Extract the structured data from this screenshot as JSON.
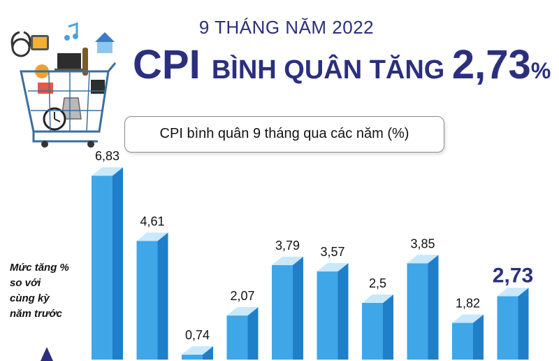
{
  "header": {
    "subtitle": "9 THÁNG NĂM 2022",
    "headline_part1": "CPI ",
    "headline_part2": "BÌNH QUÂN TĂNG ",
    "headline_part3": "2,73",
    "headline_part4": "%"
  },
  "panel_title": "CPI bình quân 9 tháng qua các năm (%)",
  "note_lines": [
    "Mức tăng %",
    "so với",
    "cùng kỳ",
    "năm trước"
  ],
  "colors": {
    "title": "#2b2f7d",
    "bar_front": "#3fa6e8",
    "bar_side": "#1f7fc9",
    "bar_top": "#c9e8fb",
    "highlight_label": "#2b2f7d"
  },
  "icons": [
    "shopping-cart-icon",
    "stethoscope-icon",
    "tv-icon",
    "music-note-icon",
    "house-icon",
    "clock-icon",
    "kettle-icon",
    "wine-bottle-icon",
    "laptop-icon"
  ],
  "chart_data": {
    "type": "bar",
    "values": [
      6.83,
      4.61,
      0.74,
      2.07,
      3.79,
      3.57,
      2.5,
      3.85,
      1.82,
      2.73
    ],
    "labels": [
      "6,83",
      "4,61",
      "0,74",
      "2,07",
      "3,79",
      "3,57",
      "2,5",
      "3,85",
      "1,82",
      "2,73"
    ],
    "highlight_index": 9,
    "title": "CPI bình quân 9 tháng qua các năm (%)"
  }
}
